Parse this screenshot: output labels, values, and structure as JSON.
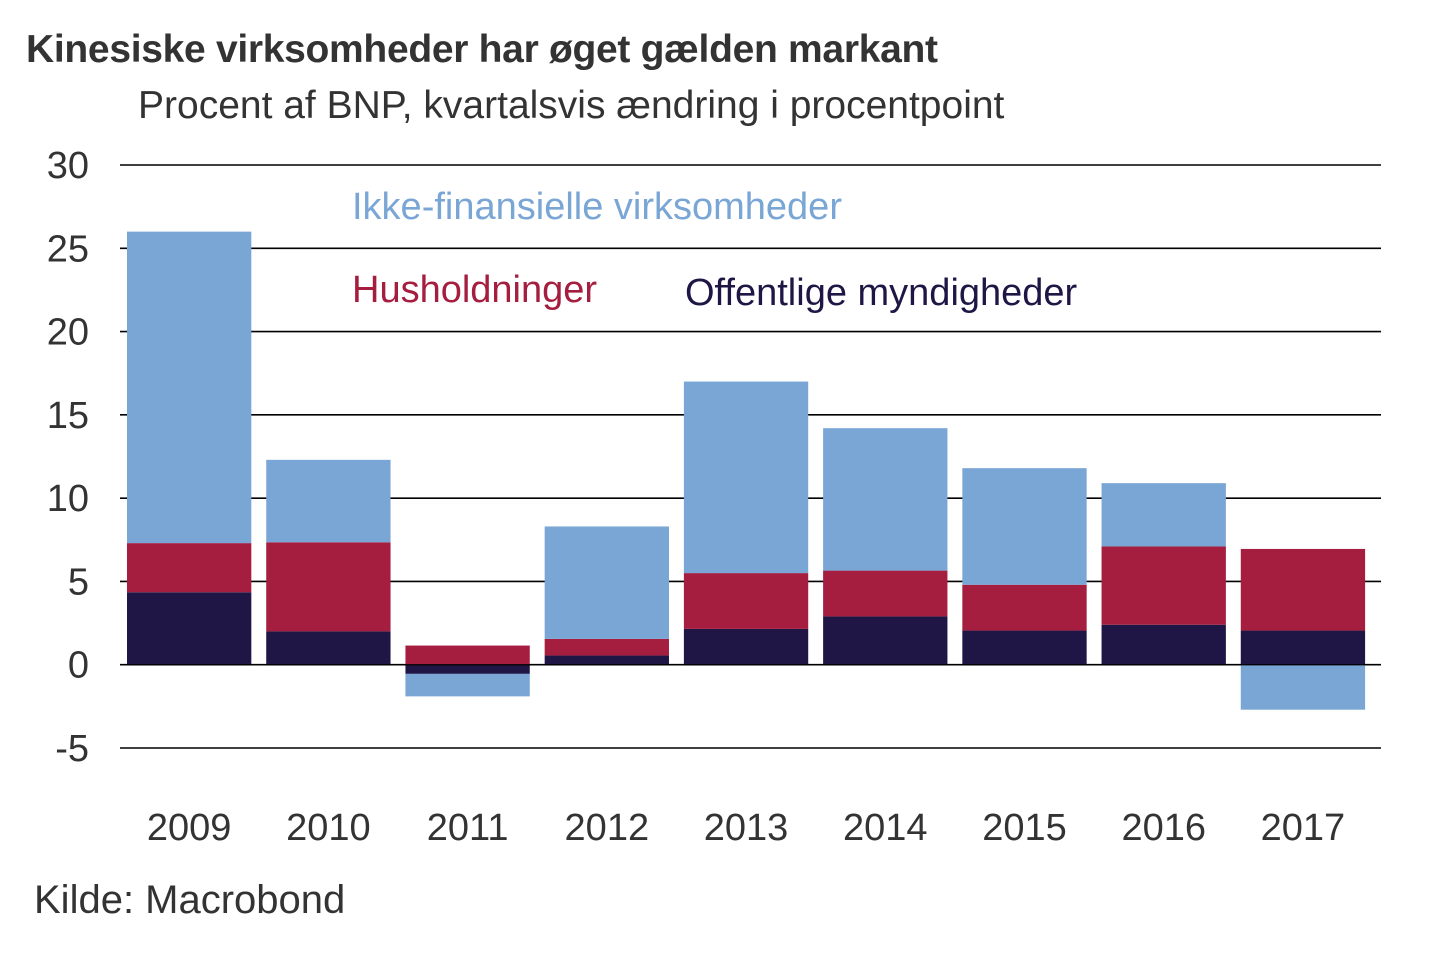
{
  "header": {
    "title": "Kinesiske virksomheder har øget gælden markant",
    "subtitle": "Procent af BNP, kvartalsvis ændring i procentpoint"
  },
  "footer": {
    "source": "Kilde: Macrobond"
  },
  "colors": {
    "ikke_finansielle": "#7aa6d5",
    "husholdninger": "#a51d3f",
    "offentlige": "#1f1646",
    "text": "#333333",
    "grid": "#000000"
  },
  "chart_data": {
    "type": "bar",
    "stacked": true,
    "title": "Kinesiske virksomheder har øget gælden markant",
    "subtitle": "Procent af BNP, kvartalsvis ændring i procentpoint",
    "xlabel": "",
    "ylabel": "",
    "categories": [
      "2009",
      "2010",
      "2011",
      "2012",
      "2013",
      "2014",
      "2015",
      "2016",
      "2017"
    ],
    "ylim": [
      -5,
      30
    ],
    "yticks": [
      30,
      25,
      20,
      15,
      10,
      5,
      0,
      -5
    ],
    "ytick_labels": [
      "30",
      "25",
      "20",
      "15",
      "10",
      "5",
      "0",
      "-5"
    ],
    "grid": true,
    "legend_placement": "inside-top",
    "series": [
      {
        "name": "Offentlige myndigheder",
        "color": "#1f1646",
        "values": [
          4.35,
          2.0,
          -0.55,
          0.55,
          2.15,
          2.9,
          2.05,
          2.4,
          2.05
        ]
      },
      {
        "name": "Husholdninger",
        "color": "#a51d3f",
        "values": [
          2.95,
          5.35,
          1.15,
          1.0,
          3.35,
          2.75,
          2.75,
          4.7,
          4.9
        ]
      },
      {
        "name": "Ikke-finansielle virksomheder",
        "color": "#7aa6d5",
        "values": [
          18.7,
          4.95,
          -1.35,
          6.75,
          11.5,
          8.55,
          7.0,
          3.8,
          -2.7
        ]
      }
    ],
    "source": "Kilde: Macrobond"
  }
}
